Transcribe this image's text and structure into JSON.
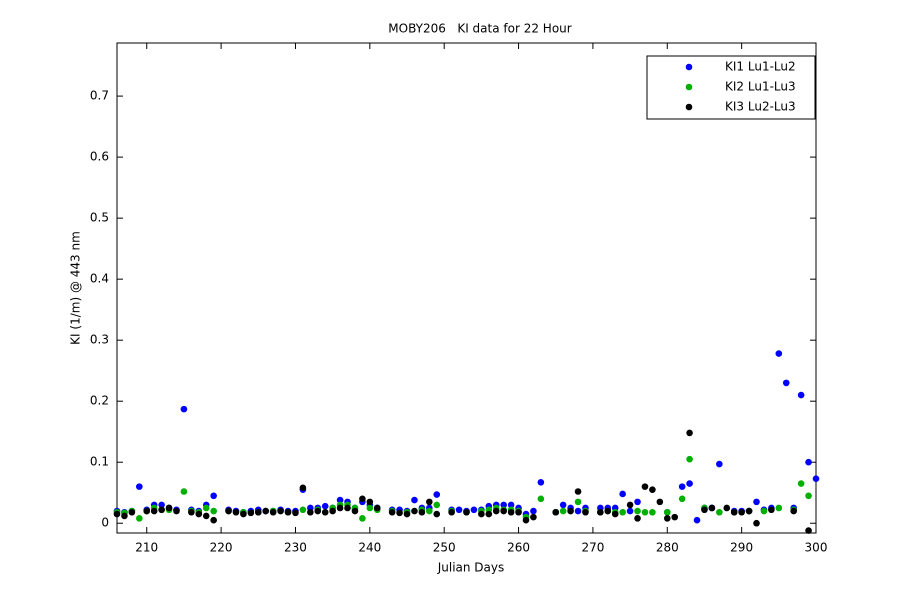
{
  "chart_data": {
    "type": "scatter",
    "title": "MOBY206   KI data for 22 Hour",
    "x_label": "Julian Days",
    "y_label": "KI (1/m) @ 443 nm",
    "xlim": [
      206,
      300
    ],
    "xticks": [
      210,
      220,
      230,
      240,
      250,
      260,
      270,
      280,
      290,
      300
    ],
    "ylim": [
      -0.016,
      0.787
    ],
    "yticks": [
      0,
      0.1,
      0.2,
      0.3,
      0.4,
      0.5,
      0.6,
      0.7
    ],
    "legend": "northeast",
    "grid": false,
    "series": [
      {
        "name": "KI1 Lu1-Lu2",
        "color": "#0000ff",
        "x": [
          206,
          207,
          208,
          209,
          210,
          211,
          212,
          213,
          214,
          215,
          216,
          217,
          218,
          219,
          221,
          222,
          223,
          224,
          225,
          226,
          227,
          228,
          229,
          230,
          231,
          232,
          233,
          234,
          235,
          236,
          237,
          238,
          239,
          240,
          241,
          243,
          244,
          245,
          246,
          247,
          248,
          249,
          251,
          252,
          253,
          254,
          255,
          256,
          257,
          258,
          259,
          260,
          261,
          262,
          263,
          265,
          266,
          267,
          268,
          269,
          271,
          272,
          273,
          274,
          275,
          276,
          280,
          282,
          283,
          284,
          285,
          286,
          287,
          289,
          290,
          291,
          292,
          293,
          294,
          295,
          296,
          297,
          298,
          299,
          300
        ],
        "values": [
          0.02,
          0.018,
          0.02,
          0.06,
          0.022,
          0.03,
          0.03,
          0.025,
          0.022,
          0.187,
          0.022,
          0.02,
          0.03,
          0.045,
          0.022,
          0.02,
          0.018,
          0.02,
          0.022,
          0.02,
          0.02,
          0.022,
          0.02,
          0.02,
          0.055,
          0.025,
          0.025,
          0.028,
          0.025,
          0.038,
          0.035,
          0.025,
          0.035,
          0.03,
          0.025,
          0.022,
          0.022,
          0.02,
          0.038,
          0.025,
          0.025,
          0.047,
          0.022,
          0.022,
          0.02,
          0.022,
          0.022,
          0.028,
          0.03,
          0.03,
          0.03,
          0.025,
          0.015,
          0.02,
          0.067,
          0.018,
          0.03,
          0.025,
          0.02,
          0.025,
          0.025,
          0.025,
          0.025,
          0.048,
          0.02,
          0.035,
          0.018,
          0.06,
          0.065,
          0.005,
          0.025,
          0.025,
          0.097,
          0.02,
          0.02,
          0.02,
          0.035,
          0.022,
          0.025,
          0.278,
          0.23,
          0.025,
          0.21,
          0.1,
          0.073
        ]
      },
      {
        "name": "KI2 Lu1-Lu3",
        "color": "#00b000",
        "x": [
          206,
          207,
          208,
          209,
          210,
          211,
          212,
          213,
          215,
          216,
          217,
          218,
          219,
          221,
          223,
          225,
          227,
          229,
          231,
          233,
          235,
          236,
          237,
          238,
          239,
          240,
          241,
          243,
          245,
          247,
          248,
          249,
          251,
          253,
          255,
          256,
          257,
          258,
          259,
          260,
          261,
          263,
          265,
          266,
          268,
          269,
          271,
          272,
          273,
          274,
          276,
          277,
          278,
          280,
          282,
          283,
          285,
          287,
          289,
          291,
          293,
          295,
          297,
          298,
          299
        ],
        "values": [
          0.018,
          0.017,
          0.02,
          0.008,
          0.02,
          0.025,
          0.022,
          0.022,
          0.052,
          0.02,
          0.018,
          0.025,
          0.02,
          0.02,
          0.018,
          0.018,
          0.02,
          0.018,
          0.022,
          0.022,
          0.025,
          0.03,
          0.03,
          0.025,
          0.008,
          0.025,
          0.022,
          0.02,
          0.018,
          0.022,
          0.02,
          0.03,
          0.02,
          0.018,
          0.02,
          0.022,
          0.025,
          0.022,
          0.022,
          0.02,
          0.01,
          0.04,
          0.018,
          0.02,
          0.035,
          0.02,
          0.018,
          0.02,
          0.018,
          0.018,
          0.02,
          0.018,
          0.018,
          0.018,
          0.04,
          0.105,
          0.025,
          0.018,
          0.018,
          0.02,
          0.02,
          0.025,
          0.022,
          0.065,
          0.045
        ]
      },
      {
        "name": "KI3 Lu2-Lu3",
        "color": "#000000",
        "x": [
          206,
          207,
          208,
          210,
          211,
          212,
          213,
          214,
          216,
          217,
          218,
          219,
          221,
          222,
          223,
          224,
          225,
          226,
          227,
          228,
          229,
          230,
          231,
          232,
          233,
          234,
          235,
          236,
          237,
          238,
          239,
          240,
          241,
          243,
          244,
          245,
          246,
          247,
          248,
          249,
          251,
          253,
          255,
          256,
          257,
          258,
          259,
          260,
          261,
          262,
          265,
          267,
          268,
          269,
          271,
          272,
          273,
          275,
          276,
          277,
          278,
          279,
          280,
          281,
          283,
          285,
          286,
          288,
          289,
          290,
          291,
          292,
          294,
          297,
          299
        ],
        "values": [
          0.015,
          0.012,
          0.018,
          0.02,
          0.02,
          0.022,
          0.025,
          0.02,
          0.018,
          0.015,
          0.012,
          0.005,
          0.02,
          0.018,
          0.015,
          0.017,
          0.018,
          0.02,
          0.018,
          0.02,
          0.018,
          0.017,
          0.058,
          0.018,
          0.02,
          0.018,
          0.02,
          0.025,
          0.025,
          0.02,
          0.04,
          0.035,
          0.025,
          0.018,
          0.017,
          0.015,
          0.02,
          0.018,
          0.035,
          0.015,
          0.018,
          0.018,
          0.015,
          0.015,
          0.02,
          0.02,
          0.018,
          0.018,
          0.005,
          0.01,
          0.018,
          0.02,
          0.052,
          0.018,
          0.018,
          0.02,
          0.015,
          0.03,
          0.008,
          0.06,
          0.055,
          0.035,
          0.008,
          0.01,
          0.148,
          0.022,
          0.025,
          0.025,
          0.018,
          0.018,
          0.02,
          0,
          0.022,
          0.02,
          -0.012
        ]
      }
    ]
  }
}
